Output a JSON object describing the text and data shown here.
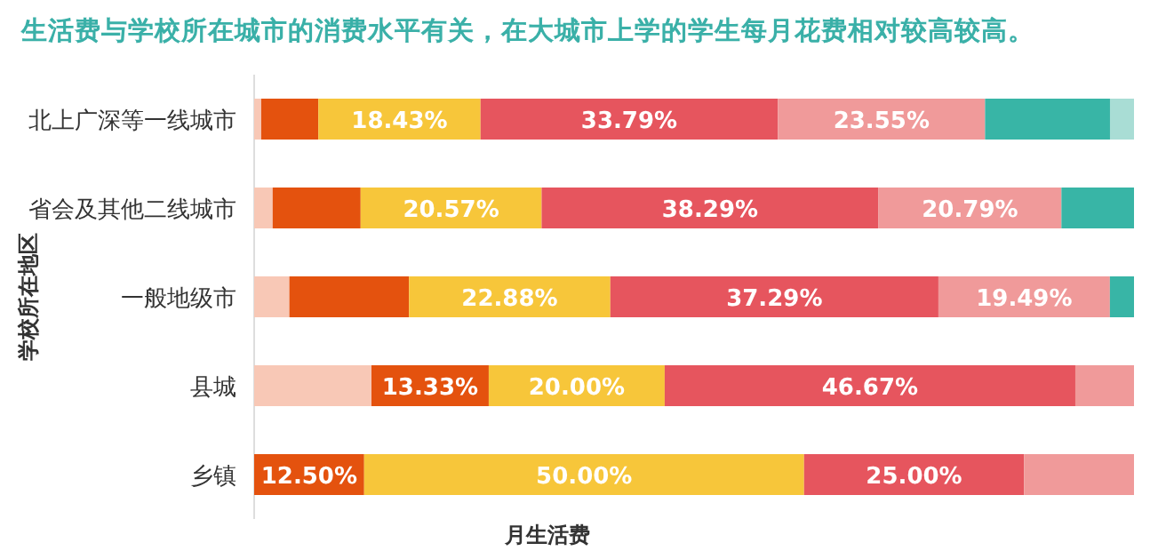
{
  "chart_data": {
    "type": "bar",
    "orientation": "horizontal",
    "stacked": true,
    "title": "生活费与学校所在城市的消费水平有关，在大城市上学的学生每月花费相对较高较高。",
    "xlabel": "月生活费",
    "ylabel": "学校所在地区",
    "categories": [
      "北上广深等一线城市",
      "省会及其他二线城市",
      "一般地级市",
      "县城",
      "乡镇"
    ],
    "series": [
      {
        "color": "#f8c8b6",
        "values": [
          0.8,
          2.1,
          4.0,
          13.33,
          null
        ],
        "value_labels": [
          null,
          null,
          null,
          null,
          null
        ]
      },
      {
        "color": "#e4520e",
        "values": [
          6.5,
          10.0,
          13.6,
          13.33,
          12.5
        ],
        "value_labels": [
          null,
          null,
          null,
          "13.33%",
          "12.50%"
        ]
      },
      {
        "color": "#f7c63a",
        "values": [
          18.43,
          20.57,
          22.88,
          20.0,
          50.0
        ],
        "value_labels": [
          "18.43%",
          "20.57%",
          "22.88%",
          "20.00%",
          "50.00%"
        ]
      },
      {
        "color": "#e6555e",
        "values": [
          33.79,
          38.29,
          37.29,
          46.67,
          25.0
        ],
        "value_labels": [
          "33.79%",
          "38.29%",
          "37.29%",
          "46.67%",
          "25.00%"
        ]
      },
      {
        "color": "#f09a9a",
        "values": [
          23.55,
          20.79,
          19.49,
          6.67,
          12.5
        ],
        "value_labels": [
          "23.55%",
          "20.79%",
          "19.49%",
          null,
          null
        ]
      },
      {
        "color": "#38b5a6",
        "values": [
          14.2,
          8.25,
          2.74,
          null,
          null
        ],
        "value_labels": [
          null,
          null,
          null,
          null,
          null
        ]
      },
      {
        "color": "#a9ddd5",
        "values": [
          2.73,
          null,
          null,
          null,
          null
        ],
        "value_labels": [
          null,
          null,
          null,
          null,
          null
        ]
      }
    ]
  }
}
